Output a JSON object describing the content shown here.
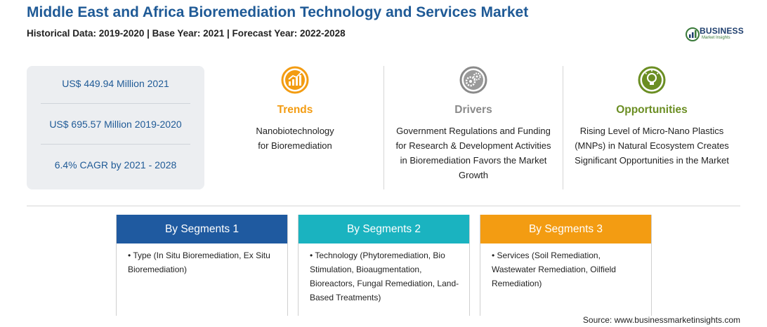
{
  "header": {
    "title": "Middle East and Africa Bioremediation Technology and Services Market",
    "subtitle": "Historical Data: 2019-2020 | Base Year: 2021 | Forecast Year: 2022-2028"
  },
  "logo": {
    "name": "BUSINESS",
    "tagline": "Market Insights"
  },
  "stats": [
    "US$ 449.94 Million 2021",
    "US$ 695.57 Million 2019-2020",
    "6.4% CAGR by 2021 - 2028"
  ],
  "columns": {
    "trends": {
      "heading": "Trends",
      "text": "Nanobiotechnology for Bioremediation",
      "color": "#f39c12",
      "icon": "rising-chart-icon"
    },
    "drivers": {
      "heading": "Drivers",
      "text": "Government Regulations and Funding for Research & Development Activities in Bioremediation Favors the Market Growth",
      "color": "#8a8a8a",
      "icon": "gears-icon"
    },
    "opportunities": {
      "heading": "Opportunities",
      "text": "Rising Level of Micro-Nano Plastics (MNPs) in Natural Ecosystem Creates Significant Opportunities in the Market",
      "color": "#6b8e23",
      "icon": "lightbulb-icon"
    }
  },
  "segments": [
    {
      "title": "By Segments 1",
      "item": "• Type (In Situ Bioremediation, Ex Situ Bioremediation)",
      "color": "#1f5aa0"
    },
    {
      "title": "By Segments 2",
      "item": "• Technology (Phytoremediation, Bio Stimulation, Bioaugmentation, Bioreactors, Fungal Remediation, Land-Based Treatments)",
      "color": "#1ab3c0"
    },
    {
      "title": "By Segments 3",
      "item": "• Services (Soil Remediation, Wastewater Remediation, Oilfield Remediation)",
      "color": "#f39c12"
    }
  ],
  "source": "Source: www.businessmarketinsights.com"
}
